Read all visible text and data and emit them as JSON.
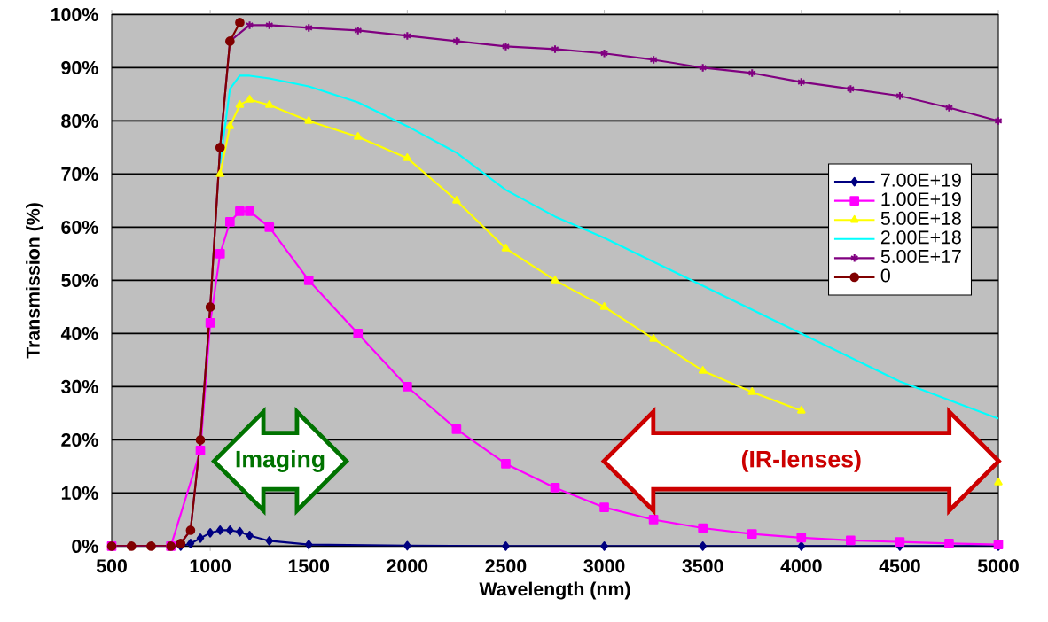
{
  "chart_data": {
    "type": "line",
    "xlabel": "Wavelength (nm)",
    "ylabel": "Transmission (%)",
    "xlim": [
      500,
      5000
    ],
    "ylim": [
      0,
      100
    ],
    "xticks": [
      500,
      1000,
      1500,
      2000,
      2500,
      3000,
      3500,
      4000,
      4500,
      5000
    ],
    "yticks": [
      {
        "value": 0,
        "label": "0%"
      },
      {
        "value": 10,
        "label": "10%"
      },
      {
        "value": 20,
        "label": "20%"
      },
      {
        "value": 30,
        "label": "30%"
      },
      {
        "value": 40,
        "label": "40%"
      },
      {
        "value": 50,
        "label": "50%"
      },
      {
        "value": 60,
        "label": "60%"
      },
      {
        "value": 70,
        "label": "70%"
      },
      {
        "value": 80,
        "label": "80%"
      },
      {
        "value": 90,
        "label": "90%"
      },
      {
        "value": 100,
        "label": "100%"
      }
    ],
    "grid": "y",
    "legend": "right",
    "series": [
      {
        "name": "7.00E+19",
        "color": "#000080",
        "marker": "diamond",
        "x": [
          500,
          850,
          900,
          950,
          1000,
          1050,
          1100,
          1150,
          1200,
          1300,
          1500,
          2000,
          2500,
          3000,
          3500,
          4000,
          4500,
          5000
        ],
        "values": [
          0,
          0,
          0.5,
          1.5,
          2.5,
          3,
          3,
          2.7,
          2,
          1,
          0.3,
          0.1,
          0,
          0,
          0,
          0,
          0,
          0
        ]
      },
      {
        "name": "1.00E+19",
        "color": "#ff00ff",
        "marker": "square",
        "x": [
          500,
          800,
          950,
          1000,
          1050,
          1100,
          1150,
          1200,
          1300,
          1500,
          1750,
          2000,
          2250,
          2500,
          2750,
          3000,
          3250,
          3500,
          3750,
          4000,
          4250,
          4500,
          4750,
          5000
        ],
        "values": [
          0,
          0,
          18,
          42,
          55,
          61,
          63,
          63,
          60,
          50,
          40,
          30,
          22,
          15.5,
          11,
          7.3,
          5,
          3.4,
          2.3,
          1.6,
          1.1,
          0.8,
          0.5,
          0.3
        ]
      },
      {
        "name": "5.00E+18",
        "color": "#ffff00",
        "marker": "triangle",
        "x": [
          1050,
          1100,
          1150,
          1200,
          1300,
          1500,
          1750,
          2000,
          2250,
          2500,
          2750,
          3000,
          3250,
          3500,
          3750,
          4000,
          4250,
          4500,
          4750,
          5000
        ],
        "values": [
          70,
          79,
          83,
          84,
          83,
          80,
          77,
          73,
          65,
          56,
          50,
          45,
          39,
          33,
          29,
          25.5,
          null,
          null,
          null,
          12
        ]
      },
      {
        "name": "2.00E+18",
        "color": "#00ffff",
        "marker": "none",
        "x": [
          1050,
          1100,
          1150,
          1200,
          1300,
          1500,
          1750,
          2000,
          2250,
          2500,
          2750,
          3000,
          3250,
          3500,
          3750,
          4000,
          4250,
          4500,
          4750,
          5000
        ],
        "values": [
          72,
          86,
          88.5,
          88.5,
          88,
          86.5,
          83.5,
          79,
          74,
          67,
          62,
          58,
          53.5,
          49,
          44.5,
          40,
          35.5,
          31,
          27.5,
          24
        ]
      },
      {
        "name": "5.00E+17",
        "color": "#800080",
        "marker": "cross",
        "x": [
          500,
          800,
          850,
          900,
          950,
          1000,
          1050,
          1100,
          1200,
          1300,
          1500,
          1750,
          2000,
          2250,
          2500,
          2750,
          3000,
          3250,
          3500,
          3750,
          4000,
          4250,
          4500,
          4750,
          5000
        ],
        "values": [
          0,
          0,
          0.5,
          3,
          20,
          45,
          75,
          95,
          98,
          98,
          97.5,
          97,
          96,
          95,
          94,
          93.5,
          92.7,
          91.5,
          90,
          89,
          87.3,
          86,
          84.7,
          82.5,
          80
        ]
      },
      {
        "name": "0",
        "color": "#800000",
        "marker": "circle",
        "x": [
          500,
          600,
          700,
          800,
          850,
          900,
          950,
          1000,
          1050,
          1100,
          1150
        ],
        "values": [
          0,
          0,
          0,
          0,
          0.5,
          3,
          20,
          45,
          75,
          95,
          98.5
        ]
      }
    ],
    "annotations": [
      "Imaging",
      "(IR-lenses)"
    ]
  }
}
